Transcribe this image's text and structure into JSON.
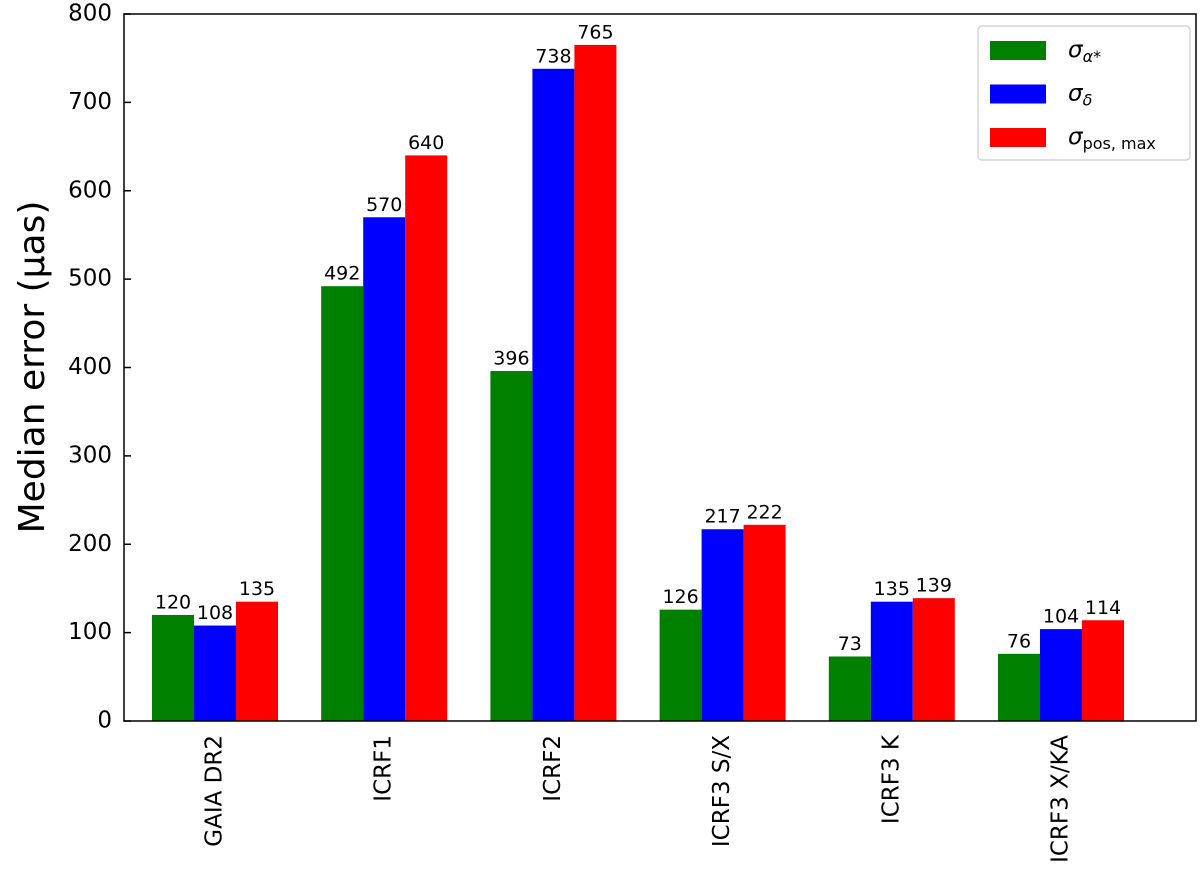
{
  "chart_data": {
    "type": "bar",
    "ylabel": "Median error (µas)",
    "categories": [
      "GAIA DR2",
      "ICRF1",
      "ICRF2",
      "ICRF3 S/X",
      "ICRF3 K",
      "ICRF3 X/KA"
    ],
    "series": [
      {
        "name": "σα*",
        "color": "#008000",
        "values": [
          120,
          492,
          396,
          126,
          73,
          76
        ]
      },
      {
        "name": "σδ",
        "color": "#0000ff",
        "values": [
          108,
          570,
          738,
          217,
          135,
          104
        ]
      },
      {
        "name": "σpos, max",
        "color": "#ff0000",
        "values": [
          135,
          640,
          765,
          222,
          139,
          114
        ]
      }
    ],
    "ylim": [
      0,
      800
    ],
    "yticks": [
      0,
      100,
      200,
      300,
      400,
      500,
      600,
      700,
      800
    ],
    "legend": "upper right"
  }
}
